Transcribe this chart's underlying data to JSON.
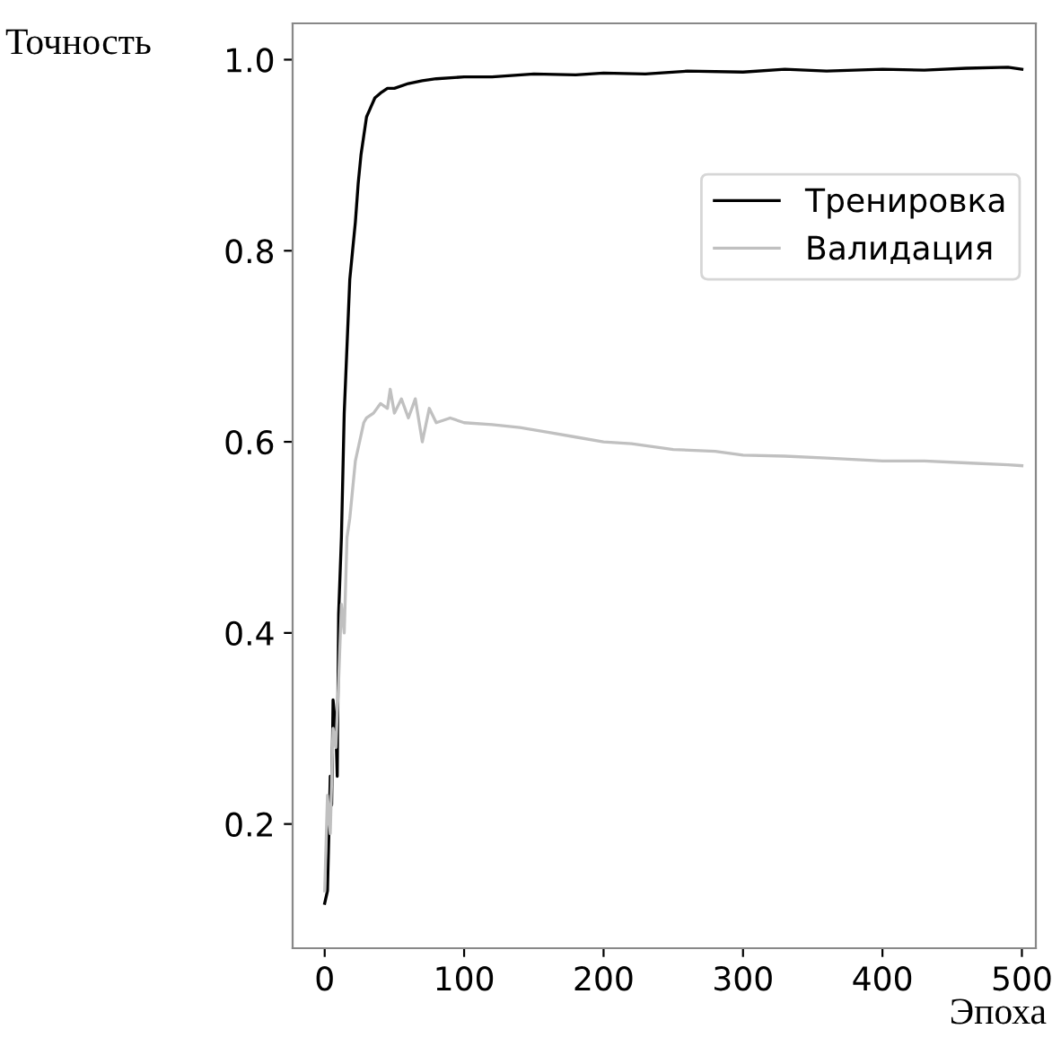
{
  "chart_data": {
    "type": "line",
    "xlabel": "Эпоха",
    "ylabel": "Точность",
    "xlim": [
      -23,
      510
    ],
    "ylim": [
      0.07,
      1.038
    ],
    "xticks": [
      0,
      100,
      200,
      300,
      400,
      500
    ],
    "yticks": [
      0.2,
      0.4,
      0.6,
      0.8,
      {
        "value": 1.0,
        "label": "1.0"
      }
    ],
    "grid": false,
    "legend": "right",
    "series": [
      {
        "name": "Тренировка",
        "color": "#000000",
        "x": [
          0,
          2,
          4,
          5,
          6,
          8,
          9,
          10,
          12,
          14,
          16,
          18,
          20,
          22,
          24,
          26,
          28,
          30,
          33,
          36,
          40,
          45,
          50,
          60,
          70,
          80,
          100,
          120,
          150,
          180,
          200,
          230,
          260,
          300,
          330,
          360,
          400,
          430,
          460,
          490,
          500
        ],
        "values": [
          0.117,
          0.13,
          0.25,
          0.22,
          0.33,
          0.3,
          0.25,
          0.42,
          0.5,
          0.63,
          0.7,
          0.77,
          0.8,
          0.83,
          0.87,
          0.9,
          0.92,
          0.94,
          0.95,
          0.96,
          0.965,
          0.97,
          0.97,
          0.975,
          0.978,
          0.98,
          0.982,
          0.982,
          0.985,
          0.984,
          0.986,
          0.985,
          0.988,
          0.987,
          0.99,
          0.988,
          0.99,
          0.989,
          0.991,
          0.992,
          0.99
        ]
      },
      {
        "name": "Валидация",
        "color": "#c0c0c0",
        "x": [
          0,
          2,
          4,
          6,
          8,
          10,
          12,
          14,
          16,
          18,
          20,
          22,
          25,
          28,
          30,
          35,
          40,
          45,
          47,
          50,
          55,
          60,
          65,
          70,
          75,
          80,
          90,
          100,
          120,
          140,
          160,
          180,
          200,
          220,
          250,
          280,
          300,
          330,
          360,
          400,
          430,
          460,
          490,
          500
        ],
        "values": [
          0.13,
          0.23,
          0.19,
          0.3,
          0.28,
          0.35,
          0.43,
          0.4,
          0.5,
          0.52,
          0.55,
          0.58,
          0.6,
          0.62,
          0.625,
          0.63,
          0.64,
          0.635,
          0.655,
          0.63,
          0.645,
          0.625,
          0.645,
          0.6,
          0.635,
          0.62,
          0.625,
          0.62,
          0.618,
          0.615,
          0.61,
          0.605,
          0.6,
          0.598,
          0.592,
          0.59,
          0.586,
          0.585,
          0.583,
          0.58,
          0.58,
          0.578,
          0.576,
          0.575
        ]
      }
    ]
  }
}
